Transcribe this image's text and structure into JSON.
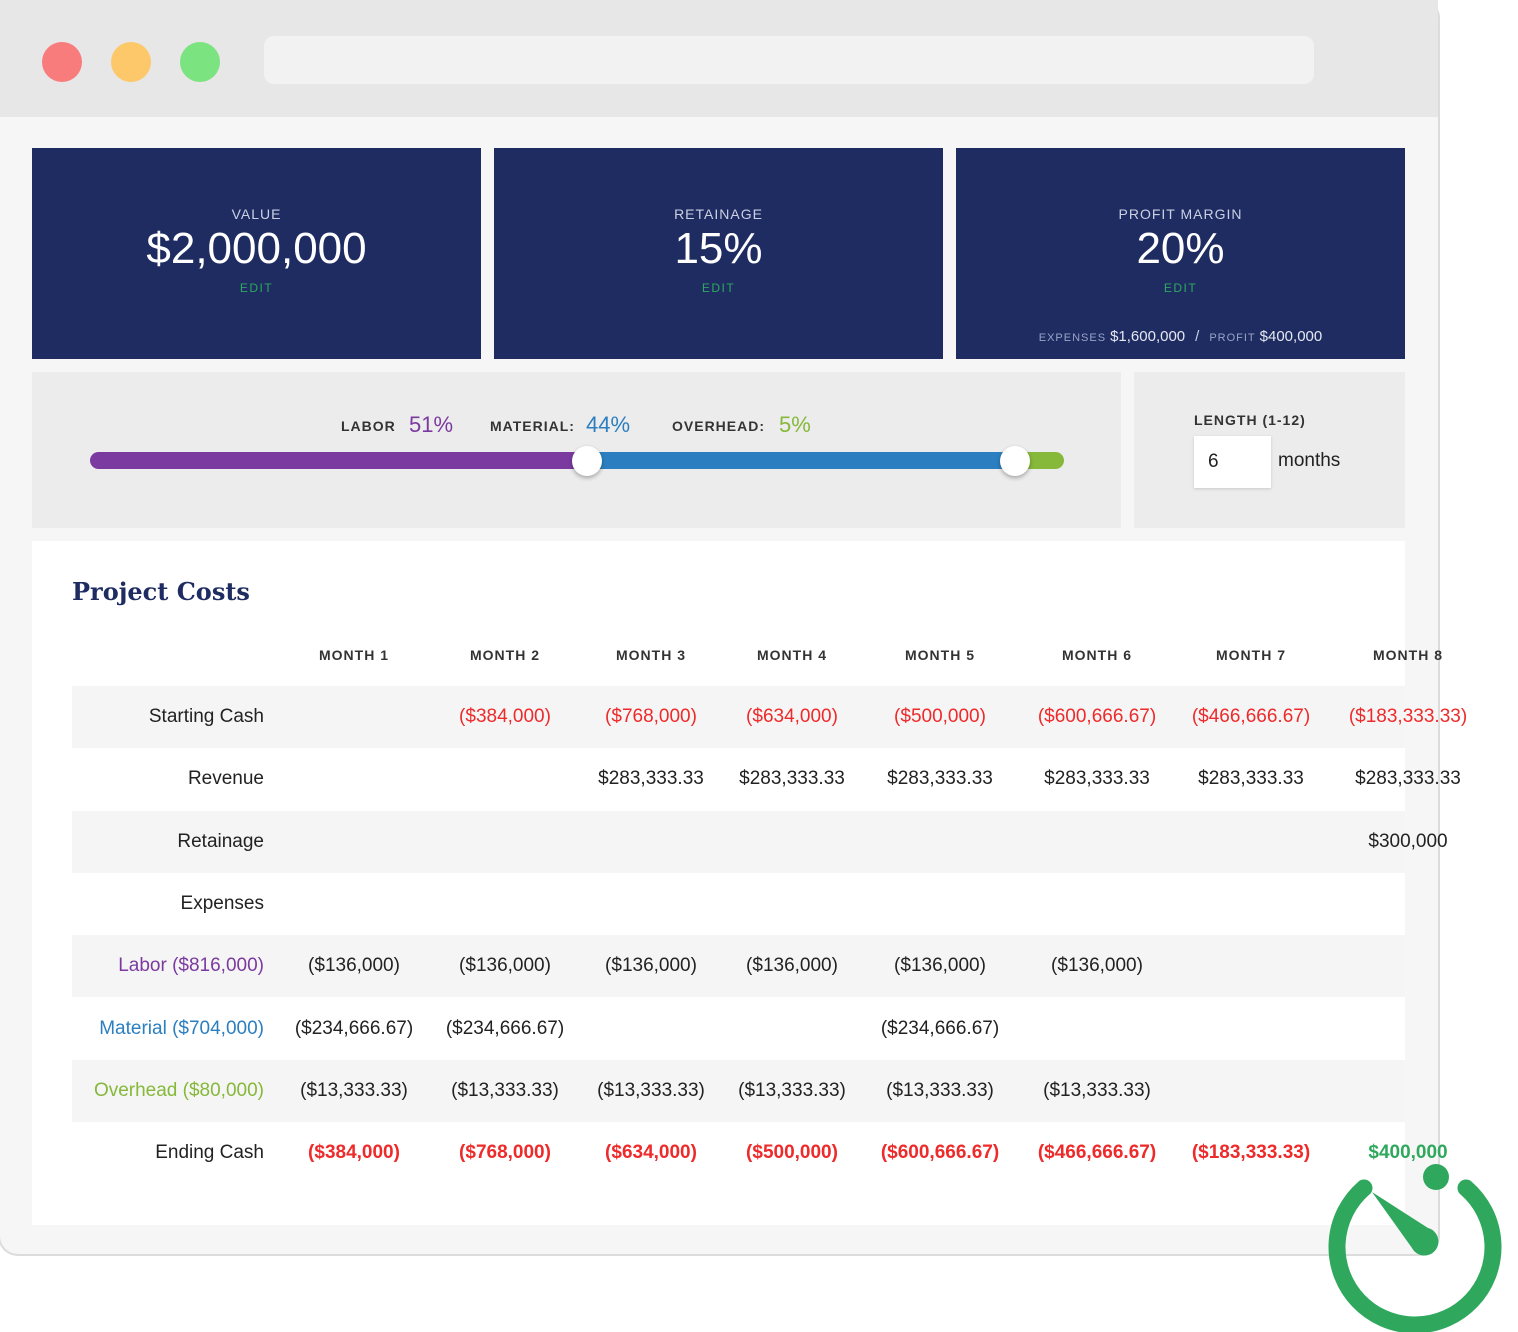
{
  "colors": {
    "navy": "#1e2c62",
    "labor": "#7b3aa0",
    "material": "#2b7fc0",
    "overhead": "#86b83a",
    "negative": "#ee2a2a",
    "positive": "#2fa85e"
  },
  "cards": [
    {
      "label": "VALUE",
      "value": "$2,000,000",
      "edit": "EDIT"
    },
    {
      "label": "RETAINAGE",
      "value": "15%",
      "edit": "EDIT"
    },
    {
      "label": "PROFIT MARGIN",
      "value": "20%",
      "edit": "EDIT",
      "expenses_label": "EXPENSES",
      "expenses_value": "$1,600,000",
      "profit_label": "PROFIT",
      "profit_value": "$400,000",
      "separator": "/"
    }
  ],
  "split": {
    "labor_label": "LABOR",
    "labor_pct": "51%",
    "material_label": "MATERIAL:",
    "material_pct": "44%",
    "overhead_label": "OVERHEAD:",
    "overhead_pct": "5%",
    "labor_fraction": 0.51,
    "material_fraction": 0.44,
    "overhead_fraction": 0.05
  },
  "length": {
    "label": "LENGTH (1-12)",
    "value": "6",
    "unit": "months"
  },
  "costs": {
    "title": "Project Costs",
    "months": [
      "MONTH 1",
      "MONTH 2",
      "MONTH 3",
      "MONTH 4",
      "MONTH 5",
      "MONTH 6",
      "MONTH 7",
      "MONTH 8"
    ],
    "rows": [
      {
        "label": "Starting Cash",
        "cells": [
          "",
          "($384,000)",
          "($768,000)",
          "($634,000)",
          "($500,000)",
          "($600,666.67)",
          "($466,666.67)",
          "($183,333.33)"
        ]
      },
      {
        "label": "Revenue",
        "cells": [
          "",
          "",
          "$283,333.33",
          "$283,333.33",
          "$283,333.33",
          "$283,333.33",
          "$283,333.33",
          "$283,333.33"
        ]
      },
      {
        "label": "Retainage",
        "cells": [
          "",
          "",
          "",
          "",
          "",
          "",
          "",
          "$300,000"
        ]
      },
      {
        "label": "Expenses",
        "cells": [
          "",
          "",
          "",
          "",
          "",
          "",
          "",
          ""
        ]
      },
      {
        "label": "Labor ($816,000)",
        "cells": [
          "($136,000)",
          "($136,000)",
          "($136,000)",
          "($136,000)",
          "($136,000)",
          "($136,000)",
          "",
          ""
        ]
      },
      {
        "label": "Material ($704,000)",
        "cells": [
          "($234,666.67)",
          "($234,666.67)",
          "",
          "",
          "($234,666.67)",
          "",
          "",
          ""
        ]
      },
      {
        "label": "Overhead ($80,000)",
        "cells": [
          "($13,333.33)",
          "($13,333.33)",
          "($13,333.33)",
          "($13,333.33)",
          "($13,333.33)",
          "($13,333.33)",
          "",
          ""
        ]
      },
      {
        "label": "Ending Cash",
        "cells": [
          "($384,000)",
          "($768,000)",
          "($634,000)",
          "($500,000)",
          "($600,666.67)",
          "($466,666.67)",
          "($183,333.33)",
          "$400,000"
        ]
      }
    ]
  }
}
